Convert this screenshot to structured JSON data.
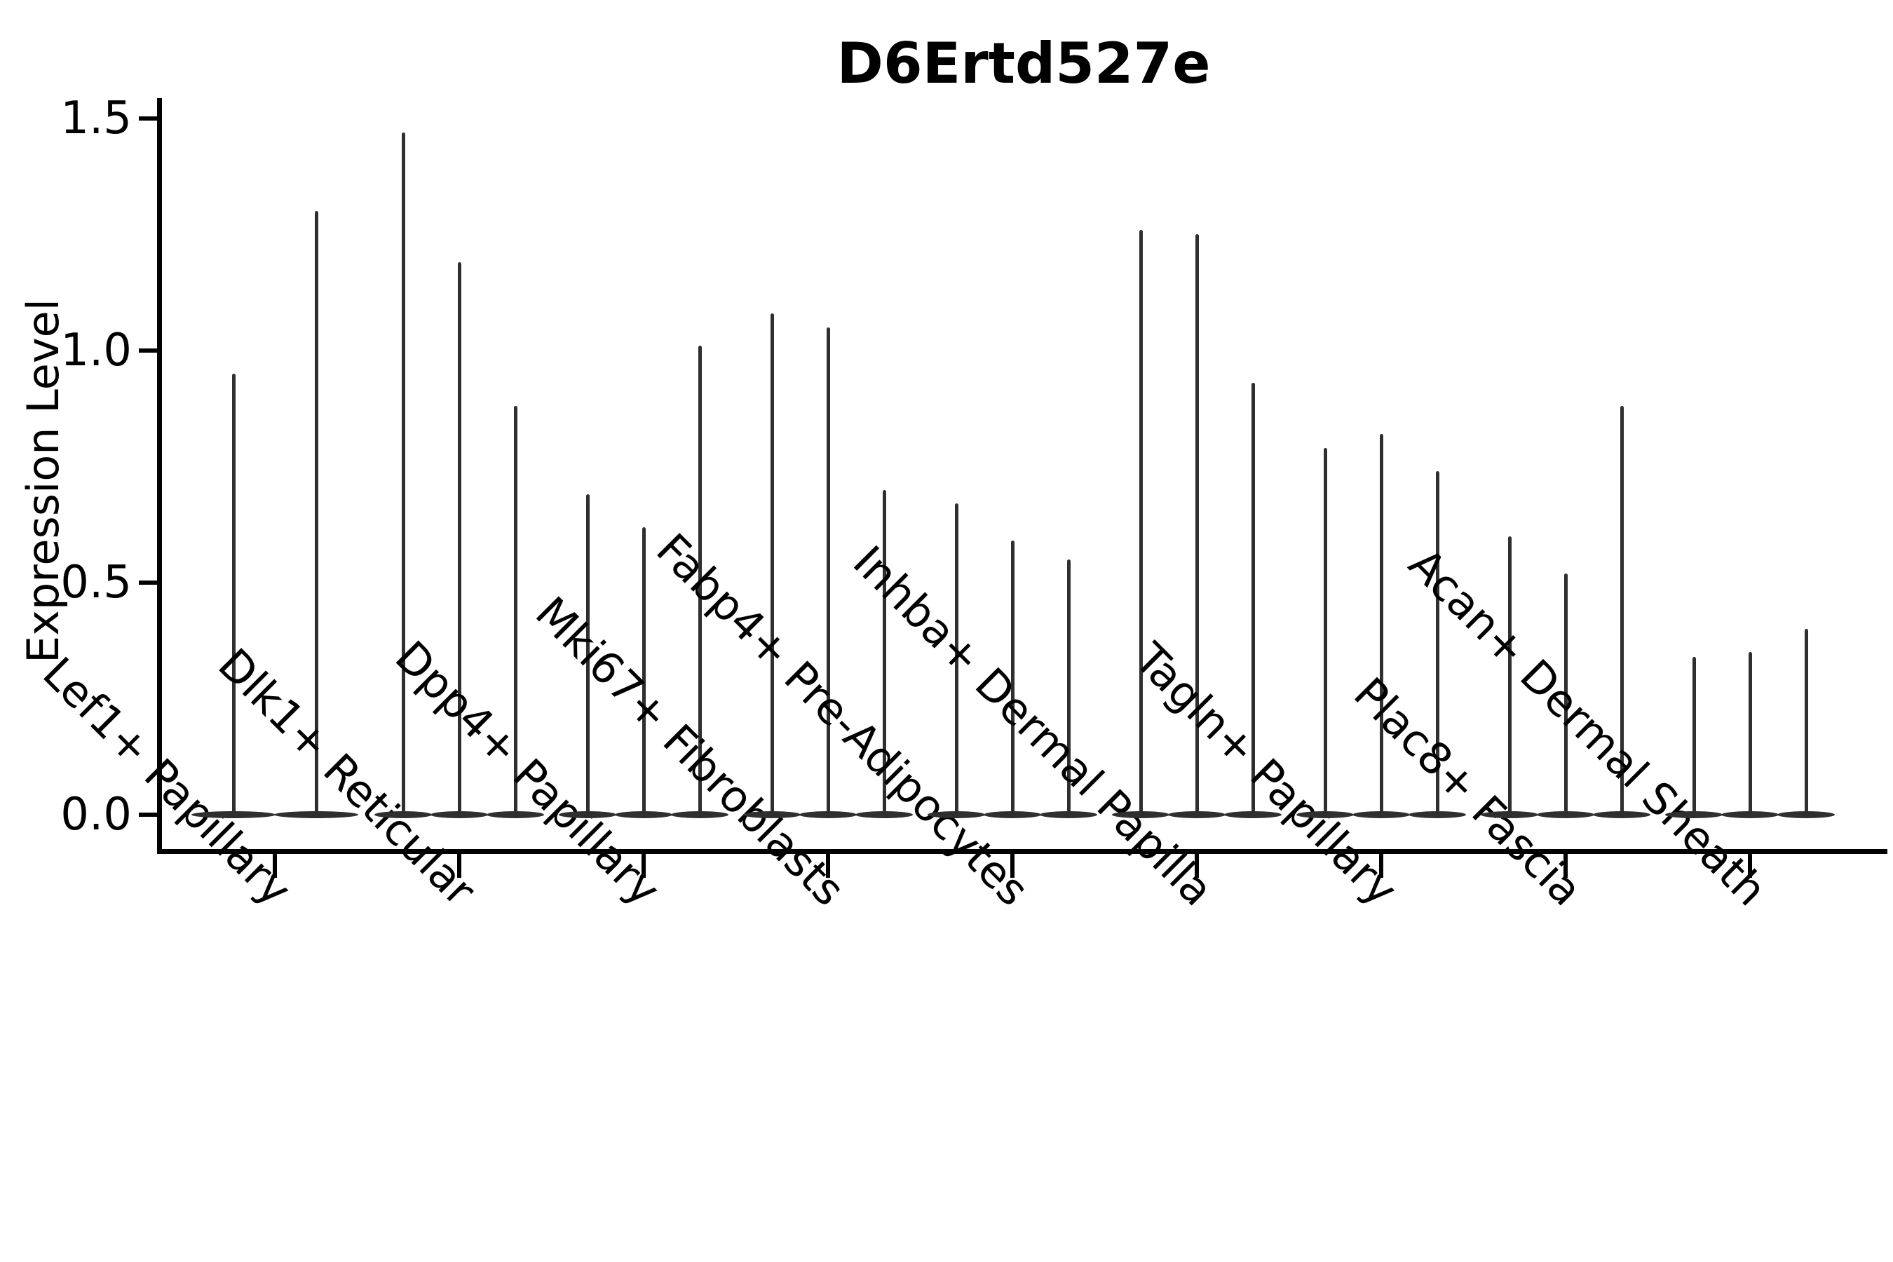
{
  "chart_data": {
    "type": "violin",
    "title": "D6Ertd527e",
    "xlabel": "",
    "ylabel": "Expression Level",
    "yticks": [
      {
        "label": "0.0",
        "value": 0.0
      },
      {
        "label": "0.5",
        "value": 0.5
      },
      {
        "label": "1.0",
        "value": 1.0
      },
      {
        "label": "1.5",
        "value": 1.5
      }
    ],
    "ylim": [
      -0.08,
      1.55
    ],
    "grid": false,
    "legend": "none",
    "violin_color": "#2f2f2f",
    "axis_color": "#000000",
    "groups": [
      {
        "label": "Lef1+ Papillary",
        "violin_max_values": [
          0.95,
          1.3
        ]
      },
      {
        "label": "Dlk1+ Reticular",
        "violin_max_values": [
          1.47,
          1.19,
          0.88
        ]
      },
      {
        "label": "Dpp4+ Papillary",
        "violin_max_values": [
          0.69,
          0.62,
          1.01
        ]
      },
      {
        "label": "Mki67+ Fibroblasts",
        "violin_max_values": [
          1.08,
          1.05,
          0.7
        ]
      },
      {
        "label": "Fabp4+ Pre-Adipocytes",
        "violin_max_values": [
          0.67,
          0.59,
          0.55
        ]
      },
      {
        "label": "Inhba+ Dermal Papilla",
        "violin_max_values": [
          1.26,
          1.25,
          0.93
        ]
      },
      {
        "label": "Tagln+ Papillary",
        "violin_max_values": [
          0.79,
          0.82,
          0.74
        ]
      },
      {
        "label": "Plac8+ Fascia",
        "violin_max_values": [
          0.6,
          0.52,
          0.88
        ]
      },
      {
        "label": "Acan+ Dermal Sheath",
        "violin_max_values": [
          0.34,
          0.35,
          0.4
        ]
      }
    ]
  }
}
